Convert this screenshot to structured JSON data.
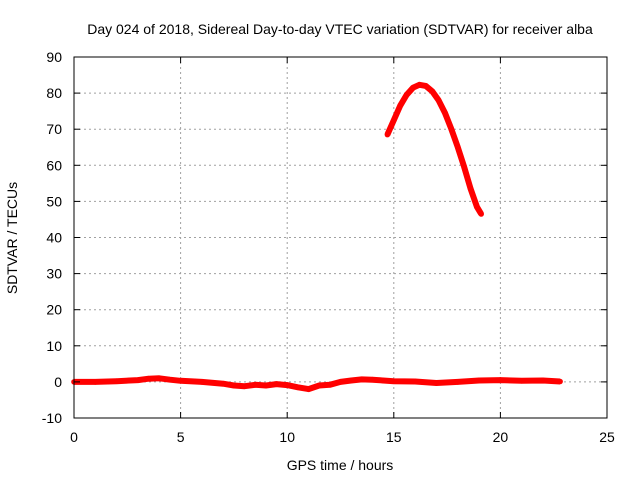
{
  "chart_data": {
    "type": "line",
    "title": "Day 024 of 2018, Sidereal Day-to-day VTEC variation (SDTVAR) for receiver alba",
    "xlabel": "GPS time / hours",
    "ylabel": "SDTVAR / TECUs",
    "xlim": [
      0,
      25
    ],
    "ylim": [
      -10,
      90
    ],
    "x_ticks": [
      "0",
      "5",
      "10",
      "15",
      "20",
      "25"
    ],
    "y_ticks": [
      "-10",
      "0",
      "10",
      "20",
      "30",
      "40",
      "50",
      "60",
      "70",
      "80",
      "90"
    ],
    "grid": true,
    "colors": {
      "series": "#ff0000",
      "grid": "#a0a0a0",
      "axis": "#000000"
    },
    "series": [
      {
        "name": "SDTVAR baseline",
        "x": [
          0,
          1,
          2,
          3,
          3.5,
          4,
          4.5,
          5,
          6,
          7,
          7.5,
          8,
          8.5,
          9,
          9.5,
          10,
          10.5,
          11,
          11.5,
          12,
          12.5,
          13,
          13.5,
          14,
          14.5,
          15,
          16,
          17,
          18,
          19,
          20,
          21,
          22,
          22.8
        ],
        "y": [
          0,
          0,
          0.2,
          0.5,
          0.9,
          1.0,
          0.6,
          0.3,
          0,
          -0.5,
          -1.0,
          -1.2,
          -0.8,
          -1.0,
          -0.6,
          -0.9,
          -1.5,
          -2.0,
          -1.0,
          -0.8,
          0,
          0.4,
          0.7,
          0.6,
          0.4,
          0.2,
          0.1,
          -0.3,
          0,
          0.4,
          0.5,
          0.3,
          0.4,
          0.1
        ]
      },
      {
        "name": "SDTVAR arc",
        "x": [
          14.7,
          15.0,
          15.3,
          15.6,
          15.9,
          16.2,
          16.5,
          16.8,
          17.1,
          17.4,
          17.7,
          18.0,
          18.3,
          18.6,
          18.9,
          19.1
        ],
        "y": [
          68.5,
          72.5,
          76.5,
          79.5,
          81.5,
          82.3,
          82.0,
          80.5,
          78.0,
          74.5,
          70.0,
          65.0,
          59.5,
          53.5,
          48.5,
          46.5
        ]
      }
    ]
  }
}
